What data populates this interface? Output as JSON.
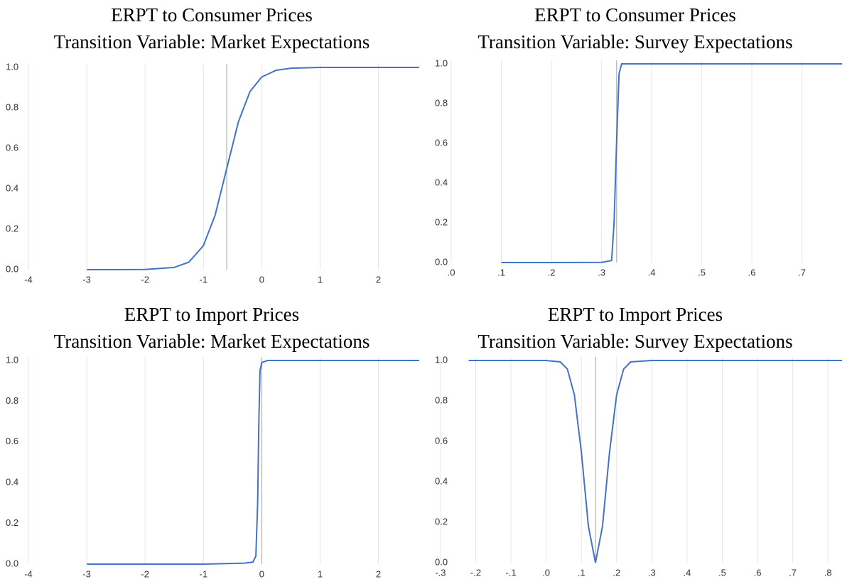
{
  "chart_data": [
    {
      "type": "line",
      "title": "ERPT to Consumer Prices",
      "subtitle": "Transition Variable: Market Expectations",
      "x": [
        -3,
        -2.5,
        -2,
        -1.5,
        -1.25,
        -1,
        -0.8,
        -0.6,
        -0.4,
        -0.2,
        0,
        0.25,
        0.5,
        1,
        1.5,
        2,
        2.7
      ],
      "series": [
        {
          "color": "#4472c4",
          "values": [
            0,
            0,
            0.001,
            0.011,
            0.037,
            0.119,
            0.269,
            0.5,
            0.731,
            0.881,
            0.953,
            0.986,
            0.996,
            1,
            1,
            1,
            1
          ]
        }
      ],
      "xlim": [
        -4,
        2.7
      ],
      "xticks": [
        -4,
        -3,
        -2,
        -1,
        0,
        1,
        2
      ],
      "ylim": [
        0,
        1
      ],
      "yticks": [
        {
          "value": 0,
          "label": "0.0"
        },
        0.2,
        0.4,
        0.6,
        0.8,
        {
          "value": 1,
          "label": "1.0"
        }
      ],
      "vline": -0.6,
      "grid": "x"
    },
    {
      "type": "line",
      "title": "ERPT to Consumer Prices",
      "subtitle": "Transition Variable: Survey Expectations",
      "x": [
        0.1,
        0.2,
        0.3,
        0.32,
        0.325,
        0.33,
        0.335,
        0.34,
        0.4,
        0.5,
        0.6,
        0.7,
        0.78
      ],
      "series": [
        {
          "color": "#4472c4",
          "values": [
            0,
            0,
            0.001,
            0.01,
            0.2,
            0.6,
            0.95,
            1,
            1,
            1,
            1,
            1,
            1
          ]
        }
      ],
      "xlim": [
        -0.01,
        0.78
      ],
      "xticks": [
        {
          "value": 0,
          "label": ".0"
        },
        {
          "value": 0.1,
          "label": ".1"
        },
        {
          "value": 0.2,
          "label": ".2"
        },
        {
          "value": 0.3,
          "label": ".3"
        },
        {
          "value": 0.4,
          "label": ".4"
        },
        {
          "value": 0.5,
          "label": ".5"
        },
        {
          "value": 0.6,
          "label": ".6"
        },
        {
          "value": 0.7,
          "label": ".7"
        }
      ],
      "ylim": [
        0,
        1
      ],
      "yticks": [
        {
          "value": 0,
          "label": "0.0"
        },
        0.2,
        0.4,
        0.6,
        0.8,
        {
          "value": 1,
          "label": "1.0"
        }
      ],
      "vline": 0.33,
      "grid": "x"
    },
    {
      "type": "line",
      "title": "ERPT to Import Prices",
      "subtitle": "Transition Variable: Market Expectations",
      "x": [
        -3,
        -2,
        -1,
        -0.3,
        -0.15,
        -0.1,
        -0.07,
        -0.05,
        -0.03,
        0,
        0.1,
        1,
        2,
        2.7
      ],
      "series": [
        {
          "color": "#4472c4",
          "values": [
            0,
            0,
            0,
            0.005,
            0.01,
            0.04,
            0.3,
            0.7,
            0.95,
            0.99,
            1,
            1,
            1,
            1
          ]
        }
      ],
      "xlim": [
        -4,
        2.7
      ],
      "xticks": [
        -4,
        -3,
        -2,
        -1,
        0,
        1,
        2
      ],
      "ylim": [
        0,
        1
      ],
      "yticks": [
        {
          "value": 0,
          "label": "0.0"
        },
        0.2,
        0.4,
        0.6,
        0.8,
        {
          "value": 1,
          "label": "1.0"
        }
      ],
      "vline": 0,
      "grid": "x"
    },
    {
      "type": "line",
      "title": "ERPT to Import Prices",
      "subtitle": "Transition Variable: Survey Expectations",
      "x": [
        -0.22,
        -0.1,
        0,
        0.04,
        0.06,
        0.08,
        0.1,
        0.12,
        0.14,
        0.16,
        0.18,
        0.2,
        0.22,
        0.24,
        0.3,
        0.5,
        0.84
      ],
      "series": [
        {
          "color": "#4472c4",
          "values": [
            1,
            1,
            1,
            0.993,
            0.958,
            0.831,
            0.546,
            0.18,
            0,
            0.18,
            0.546,
            0.831,
            0.958,
            0.993,
            1,
            1,
            1
          ]
        }
      ],
      "xlim": [
        -0.32,
        0.84
      ],
      "xticks": [
        {
          "value": -0.3,
          "label": "-.3"
        },
        {
          "value": -0.2,
          "label": "-.2"
        },
        {
          "value": -0.1,
          "label": "-.1"
        },
        {
          "value": 0,
          "label": ".0"
        },
        {
          "value": 0.1,
          "label": ".1"
        },
        {
          "value": 0.2,
          "label": ".2"
        },
        {
          "value": 0.3,
          "label": ".3"
        },
        {
          "value": 0.4,
          "label": ".4"
        },
        {
          "value": 0.5,
          "label": ".5"
        },
        {
          "value": 0.6,
          "label": ".6"
        },
        {
          "value": 0.7,
          "label": ".7"
        },
        {
          "value": 0.8,
          "label": ".8"
        }
      ],
      "ylim": [
        0,
        1
      ],
      "yticks": [
        {
          "value": 0,
          "label": "0.0"
        },
        0.2,
        0.4,
        0.6,
        0.8,
        {
          "value": 1,
          "label": "1.0"
        }
      ],
      "vline": 0.14,
      "grid": "x"
    }
  ]
}
